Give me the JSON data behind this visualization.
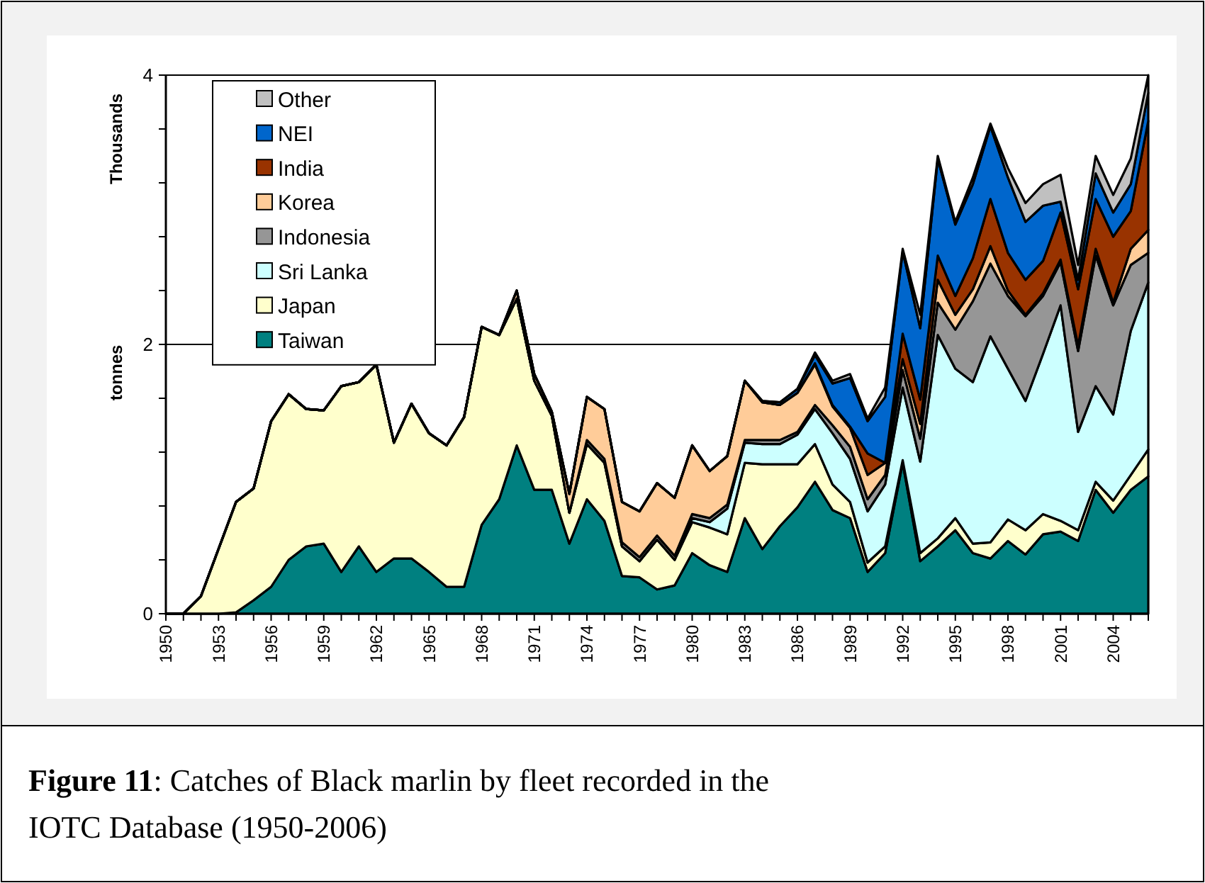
{
  "chart_data": {
    "type": "area",
    "stacked": true,
    "title": "Figure 11: Catches of Black marlin by fleet recorded in the IOTC Database (1950-2006)",
    "ylabel": "tonnes",
    "annotations": [
      "Thousands"
    ],
    "x": [
      1950,
      1951,
      1952,
      1953,
      1954,
      1955,
      1956,
      1957,
      1958,
      1959,
      1960,
      1961,
      1962,
      1963,
      1964,
      1965,
      1966,
      1967,
      1968,
      1969,
      1970,
      1971,
      1972,
      1973,
      1974,
      1975,
      1976,
      1977,
      1978,
      1979,
      1980,
      1981,
      1982,
      1983,
      1984,
      1985,
      1986,
      1987,
      1988,
      1989,
      1990,
      1991,
      1992,
      1993,
      1994,
      1995,
      1996,
      1997,
      1998,
      1999,
      2000,
      2001,
      2002,
      2003,
      2004,
      2005,
      2006
    ],
    "xlim": [
      1950,
      2006
    ],
    "xticks": [
      1950,
      {
        "value": 1951,
        "label": null
      },
      {
        "value": 1952,
        "label": null
      },
      1953,
      {
        "value": 1954,
        "label": null
      },
      {
        "value": 1955,
        "label": null
      },
      1956,
      {
        "value": 1957,
        "label": null
      },
      {
        "value": 1958,
        "label": null
      },
      1959,
      {
        "value": 1960,
        "label": null
      },
      {
        "value": 1961,
        "label": null
      },
      1962,
      {
        "value": 1963,
        "label": null
      },
      {
        "value": 1964,
        "label": null
      },
      1965,
      {
        "value": 1966,
        "label": null
      },
      {
        "value": 1967,
        "label": null
      },
      1968,
      {
        "value": 1969,
        "label": null
      },
      {
        "value": 1970,
        "label": null
      },
      1971,
      {
        "value": 1972,
        "label": null
      },
      {
        "value": 1973,
        "label": null
      },
      1974,
      {
        "value": 1975,
        "label": null
      },
      {
        "value": 1976,
        "label": null
      },
      1977,
      {
        "value": 1978,
        "label": null
      },
      {
        "value": 1979,
        "label": null
      },
      1980,
      {
        "value": 1981,
        "label": null
      },
      {
        "value": 1982,
        "label": null
      },
      1983,
      {
        "value": 1984,
        "label": null
      },
      {
        "value": 1985,
        "label": null
      },
      1986,
      {
        "value": 1987,
        "label": null
      },
      {
        "value": 1988,
        "label": null
      },
      1989,
      {
        "value": 1990,
        "label": null
      },
      {
        "value": 1991,
        "label": null
      },
      1992,
      {
        "value": 1993,
        "label": null
      },
      {
        "value": 1994,
        "label": null
      },
      1995,
      {
        "value": 1996,
        "label": null
      },
      {
        "value": 1997,
        "label": null
      },
      1998,
      {
        "value": 1999,
        "label": null
      },
      {
        "value": 2000,
        "label": null
      },
      2001,
      {
        "value": 2002,
        "label": null
      },
      {
        "value": 2003,
        "label": null
      },
      2004,
      {
        "value": 2005,
        "label": null
      },
      {
        "value": 2006,
        "label": null
      }
    ],
    "ylim": [
      0,
      4
    ],
    "yticks": [
      0,
      {
        "value": 0.4,
        "label": null
      },
      {
        "value": 0.8,
        "label": null
      },
      {
        "value": 1.2,
        "label": null
      },
      {
        "value": 1.6,
        "label": null
      },
      2,
      {
        "value": 2.4,
        "label": null
      },
      {
        "value": 2.8,
        "label": null
      },
      {
        "value": 3.2,
        "label": null
      },
      {
        "value": 3.6,
        "label": null
      },
      4
    ],
    "grid": "y",
    "legend": "top left",
    "series": [
      {
        "name": "Taiwan",
        "color": "#008080",
        "values": [
          0,
          0,
          0,
          0,
          0.01,
          0.1,
          0.2,
          0.4,
          0.5,
          0.52,
          0.31,
          0.5,
          0.31,
          0.41,
          0.41,
          0.31,
          0.2,
          0.2,
          0.66,
          0.85,
          1.25,
          0.92,
          0.92,
          0.52,
          0.85,
          0.69,
          0.28,
          0.27,
          0.18,
          0.21,
          0.45,
          0.36,
          0.31,
          0.71,
          0.48,
          0.65,
          0.79,
          0.98,
          0.77,
          0.71,
          0.31,
          0.45,
          1.12,
          0.39,
          0.5,
          0.62,
          0.45,
          0.41,
          0.54,
          0.44,
          0.59,
          0.61,
          0.54,
          0.92,
          0.75,
          0.92,
          1.02
        ]
      },
      {
        "name": "Japan",
        "color": "#ffffcc",
        "values": [
          0,
          0,
          0.13,
          0.48,
          0.82,
          0.83,
          1.23,
          1.23,
          1.02,
          0.99,
          1.38,
          1.22,
          1.54,
          0.86,
          1.15,
          1.03,
          1.05,
          1.26,
          1.47,
          1.22,
          1.09,
          0.81,
          0.55,
          0.23,
          0.41,
          0.43,
          0.22,
          0.12,
          0.37,
          0.19,
          0.23,
          0.28,
          0.28,
          0.41,
          0.63,
          0.46,
          0.32,
          0.28,
          0.19,
          0.12,
          0.07,
          0.05,
          0.02,
          0.06,
          0.06,
          0.09,
          0.07,
          0.12,
          0.16,
          0.18,
          0.15,
          0.08,
          0.08,
          0.06,
          0.09,
          0.11,
          0.2
        ]
      },
      {
        "name": "Sri Lanka",
        "color": "#ccffff",
        "values": [
          0,
          0,
          0,
          0,
          0,
          0,
          0,
          0,
          0,
          0,
          0,
          0,
          0,
          0,
          0,
          0,
          0,
          0,
          0,
          0,
          0,
          0,
          0,
          0,
          0,
          0,
          0,
          0,
          0,
          0,
          0.03,
          0.04,
          0.19,
          0.15,
          0.15,
          0.15,
          0.22,
          0.26,
          0.38,
          0.32,
          0.38,
          0.46,
          0.54,
          0.68,
          1.51,
          1.11,
          1.2,
          1.53,
          1.12,
          0.96,
          1.19,
          1.6,
          0.73,
          0.71,
          0.64,
          1.07,
          1.24
        ]
      },
      {
        "name": "Indonesia",
        "color": "#969696",
        "values": [
          0,
          0,
          0,
          0,
          0,
          0,
          0,
          0,
          0,
          0,
          0,
          0,
          0,
          0,
          0,
          0,
          0,
          0,
          0,
          0,
          0,
          0,
          0,
          0,
          0.03,
          0.03,
          0.03,
          0.03,
          0.03,
          0.03,
          0.03,
          0.03,
          0.03,
          0.02,
          0.03,
          0.03,
          0.02,
          0.03,
          0.06,
          0.09,
          0.09,
          0.07,
          0.13,
          0.17,
          0.24,
          0.29,
          0.6,
          0.54,
          0.54,
          0.63,
          0.43,
          0.32,
          0.6,
          0.97,
          0.81,
          0.49,
          0.22
        ]
      },
      {
        "name": "Korea",
        "color": "#ffcc99",
        "values": [
          0,
          0,
          0,
          0,
          0,
          0,
          0,
          0,
          0,
          0,
          0,
          0,
          0,
          0,
          0,
          0,
          0,
          0,
          0,
          0,
          0.06,
          0.05,
          0.03,
          0.14,
          0.32,
          0.37,
          0.3,
          0.34,
          0.39,
          0.43,
          0.51,
          0.35,
          0.36,
          0.44,
          0.28,
          0.26,
          0.29,
          0.3,
          0.14,
          0.14,
          0.18,
          0.09,
          0.08,
          0.11,
          0.17,
          0.11,
          0.09,
          0.13,
          0.04,
          0.01,
          0.02,
          0.02,
          0.04,
          0.05,
          0.02,
          0.12,
          0.17
        ]
      },
      {
        "name": "India",
        "color": "#993300",
        "values": [
          0,
          0,
          0,
          0,
          0,
          0,
          0,
          0,
          0,
          0,
          0,
          0,
          0,
          0,
          0,
          0,
          0,
          0,
          0,
          0,
          0,
          0,
          0,
          0,
          0,
          0,
          0,
          0,
          0,
          0,
          0,
          0,
          0,
          0,
          0,
          0,
          0,
          0.01,
          0.01,
          0.01,
          0.16,
          0,
          0.19,
          0.18,
          0.18,
          0.14,
          0.23,
          0.35,
          0.28,
          0.26,
          0.24,
          0.35,
          0.42,
          0.37,
          0.49,
          0.28,
          0.81
        ]
      },
      {
        "name": "NEI",
        "color": "#0066cc",
        "values": [
          0,
          0,
          0,
          0,
          0,
          0,
          0,
          0,
          0,
          0,
          0,
          0,
          0,
          0,
          0,
          0,
          0,
          0,
          0,
          0,
          0,
          0,
          0,
          0,
          0,
          0,
          0,
          0,
          0,
          0,
          0,
          0,
          0,
          0,
          0.01,
          0.02,
          0.03,
          0.06,
          0.16,
          0.36,
          0.24,
          0.49,
          0.61,
          0.53,
          0.72,
          0.53,
          0.55,
          0.54,
          0.56,
          0.43,
          0.41,
          0.08,
          0.07,
          0.19,
          0.18,
          0.2,
          0.21
        ]
      },
      {
        "name": "Other",
        "color": "#c0c0c0",
        "values": [
          0,
          0,
          0,
          0,
          0,
          0,
          0,
          0,
          0,
          0,
          0,
          0,
          0,
          0,
          0,
          0,
          0,
          0,
          0,
          0,
          0,
          0,
          0,
          0,
          0,
          0,
          0,
          0,
          0,
          0,
          0,
          0,
          0,
          0,
          0,
          0,
          0,
          0.02,
          0.02,
          0.03,
          0.02,
          0.07,
          0.02,
          0.1,
          0.02,
          0.02,
          0.05,
          0.02,
          0.07,
          0.14,
          0.16,
          0.2,
          0.11,
          0.13,
          0.13,
          0.19,
          0.13
        ]
      }
    ]
  }
}
